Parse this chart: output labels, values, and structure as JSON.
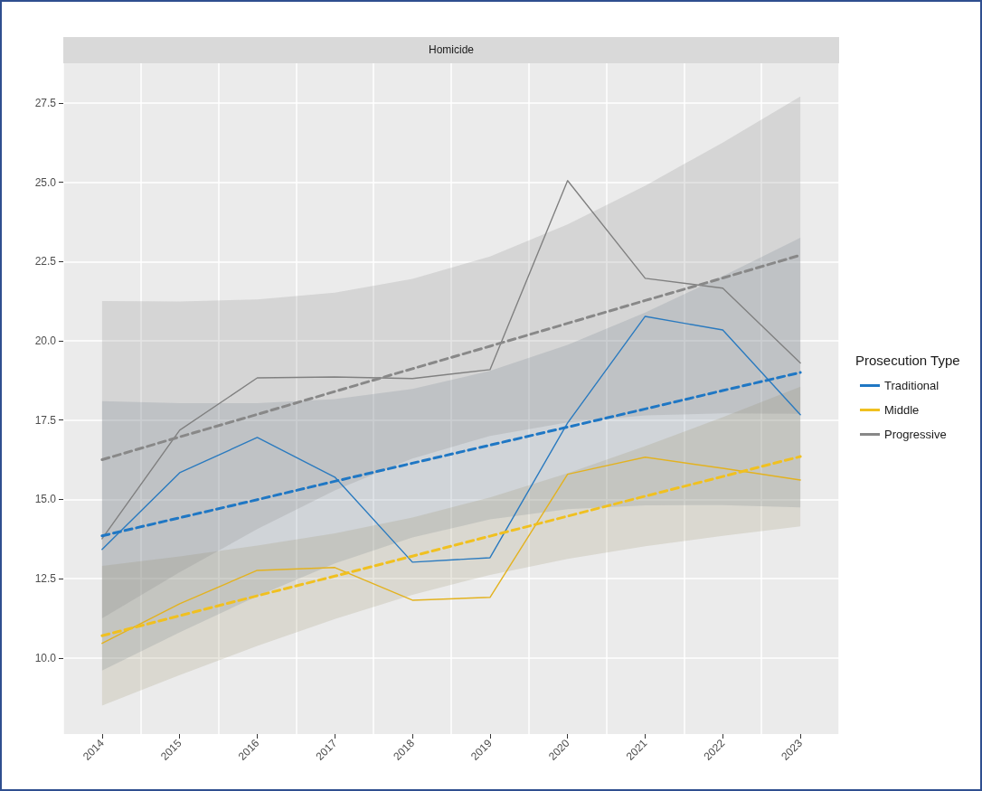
{
  "chart_data": {
    "type": "line",
    "title": "Homicide",
    "legend_title": "Prosecution Type",
    "categories": [
      "2014",
      "2015",
      "2016",
      "2017",
      "2018",
      "2019",
      "2020",
      "2021",
      "2022",
      "2023"
    ],
    "series": [
      {
        "color": "#2a7abf",
        "line_style": "solid",
        "values": [
          13.42,
          15.84,
          16.95,
          15.7,
          13.02,
          13.16,
          17.41,
          20.77,
          20.34,
          17.67
        ]
      },
      {
        "color": "#e3b21f",
        "line_style": "solid",
        "values": [
          10.46,
          11.71,
          12.76,
          12.85,
          11.82,
          11.91,
          15.79,
          16.33,
          15.98,
          15.61
        ]
      },
      {
        "color": "#808080",
        "line_style": "solid",
        "values": [
          13.76,
          17.18,
          18.83,
          18.86,
          18.81,
          19.09,
          25.05,
          21.97,
          21.66,
          19.3
        ]
      },
      {
        "name": "Traditional",
        "color": "#1f77c4",
        "line_style": "dashed",
        "values": [
          13.85,
          14.42,
          14.99,
          15.57,
          16.14,
          16.71,
          17.28,
          17.85,
          18.43,
          19.0
        ],
        "lower": [
          9.6,
          10.81,
          11.95,
          12.98,
          13.8,
          14.37,
          14.69,
          14.81,
          14.82,
          14.75
        ],
        "upper": [
          18.1,
          18.03,
          18.03,
          18.16,
          18.48,
          19.05,
          19.87,
          20.89,
          22.04,
          23.25
        ]
      },
      {
        "name": "Middle",
        "color": "#f0c020",
        "line_style": "dashed",
        "values": [
          10.7,
          11.33,
          11.96,
          12.58,
          13.21,
          13.84,
          14.47,
          15.1,
          15.72,
          16.35
        ],
        "lower": [
          8.5,
          9.46,
          10.38,
          11.23,
          11.99,
          12.62,
          13.12,
          13.52,
          13.85,
          14.15
        ],
        "upper": [
          12.9,
          13.2,
          13.54,
          13.93,
          14.43,
          15.06,
          15.82,
          16.68,
          17.59,
          18.55
        ]
      },
      {
        "name": "Progressive",
        "color": "#888888",
        "line_style": "dashed",
        "values": [
          16.25,
          16.97,
          17.68,
          18.4,
          19.12,
          19.83,
          20.55,
          21.27,
          21.98,
          22.7
        ],
        "lower": [
          11.25,
          12.7,
          14.06,
          15.28,
          16.29,
          17.0,
          17.43,
          17.65,
          17.71,
          17.7
        ],
        "upper": [
          21.25,
          21.24,
          21.3,
          21.52,
          21.95,
          22.66,
          23.67,
          24.89,
          26.25,
          27.7
        ]
      }
    ],
    "ylim": [
      7.6,
      28.75
    ],
    "yticks": [
      {
        "value": 10,
        "label": "10.0"
      },
      12.5,
      {
        "value": 15,
        "label": "15.0"
      },
      17.5,
      {
        "value": 20,
        "label": "20.0"
      },
      22.5,
      {
        "value": 25,
        "label": "25.0"
      },
      27.5
    ],
    "grid": true,
    "legend": "right",
    "marker": "none"
  }
}
